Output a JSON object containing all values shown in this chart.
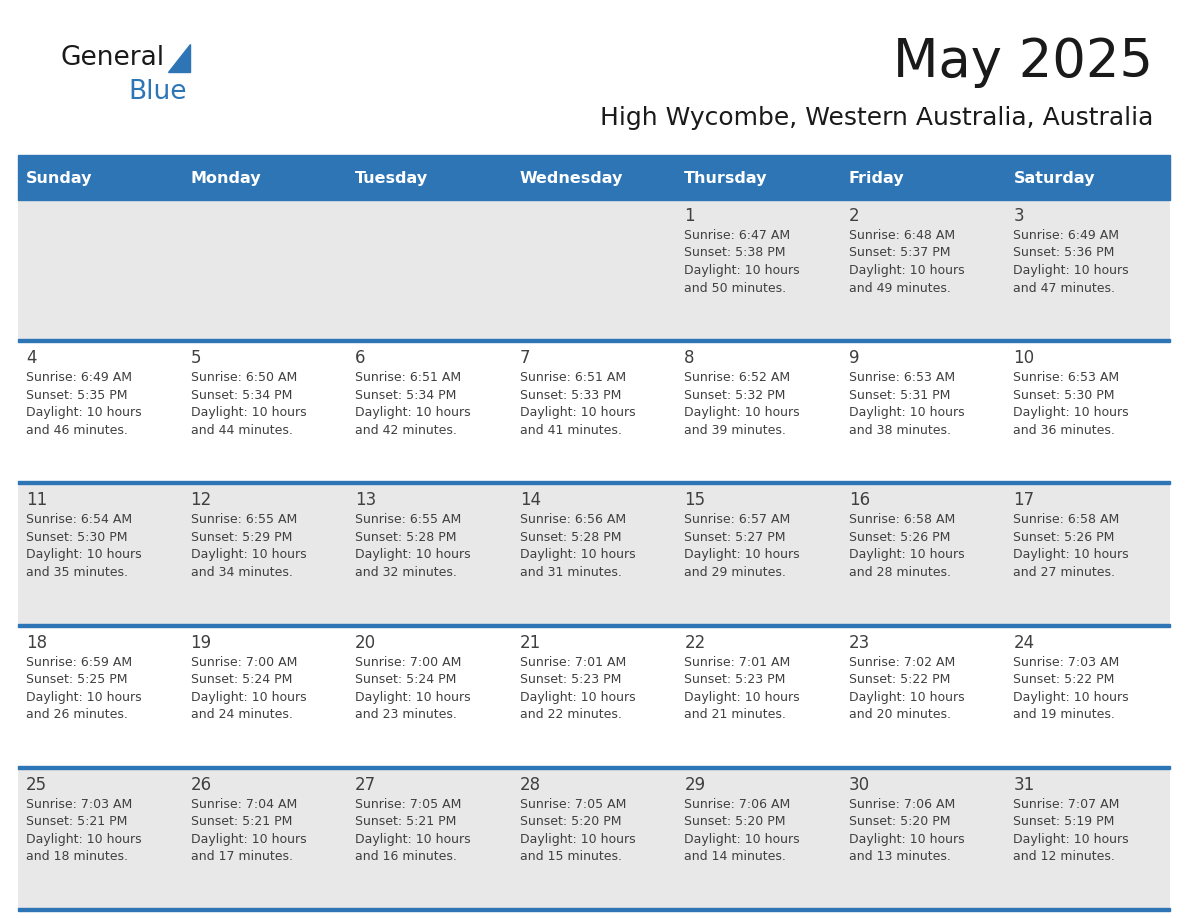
{
  "title": "May 2025",
  "subtitle": "High Wycombe, Western Australia, Australia",
  "days_of_week": [
    "Sunday",
    "Monday",
    "Tuesday",
    "Wednesday",
    "Thursday",
    "Friday",
    "Saturday"
  ],
  "header_bg": "#2E75B6",
  "header_text": "#FFFFFF",
  "cell_bg_even": "#FFFFFF",
  "cell_bg_odd": "#E8E8E8",
  "separator_color": "#2E75B6",
  "text_color": "#404040",
  "title_color": "#1a1a1a",
  "logo_black": "#1a1a1a",
  "logo_blue": "#2E75B6",
  "calendar_data": [
    [
      null,
      null,
      null,
      null,
      {
        "day": "1",
        "sunrise": "6:47 AM",
        "sunset": "5:38 PM",
        "daylight_hrs": "10 hours",
        "daylight_min": "and 50 minutes."
      },
      {
        "day": "2",
        "sunrise": "6:48 AM",
        "sunset": "5:37 PM",
        "daylight_hrs": "10 hours",
        "daylight_min": "and 49 minutes."
      },
      {
        "day": "3",
        "sunrise": "6:49 AM",
        "sunset": "5:36 PM",
        "daylight_hrs": "10 hours",
        "daylight_min": "and 47 minutes."
      }
    ],
    [
      {
        "day": "4",
        "sunrise": "6:49 AM",
        "sunset": "5:35 PM",
        "daylight_hrs": "10 hours",
        "daylight_min": "and 46 minutes."
      },
      {
        "day": "5",
        "sunrise": "6:50 AM",
        "sunset": "5:34 PM",
        "daylight_hrs": "10 hours",
        "daylight_min": "and 44 minutes."
      },
      {
        "day": "6",
        "sunrise": "6:51 AM",
        "sunset": "5:34 PM",
        "daylight_hrs": "10 hours",
        "daylight_min": "and 42 minutes."
      },
      {
        "day": "7",
        "sunrise": "6:51 AM",
        "sunset": "5:33 PM",
        "daylight_hrs": "10 hours",
        "daylight_min": "and 41 minutes."
      },
      {
        "day": "8",
        "sunrise": "6:52 AM",
        "sunset": "5:32 PM",
        "daylight_hrs": "10 hours",
        "daylight_min": "and 39 minutes."
      },
      {
        "day": "9",
        "sunrise": "6:53 AM",
        "sunset": "5:31 PM",
        "daylight_hrs": "10 hours",
        "daylight_min": "and 38 minutes."
      },
      {
        "day": "10",
        "sunrise": "6:53 AM",
        "sunset": "5:30 PM",
        "daylight_hrs": "10 hours",
        "daylight_min": "and 36 minutes."
      }
    ],
    [
      {
        "day": "11",
        "sunrise": "6:54 AM",
        "sunset": "5:30 PM",
        "daylight_hrs": "10 hours",
        "daylight_min": "and 35 minutes."
      },
      {
        "day": "12",
        "sunrise": "6:55 AM",
        "sunset": "5:29 PM",
        "daylight_hrs": "10 hours",
        "daylight_min": "and 34 minutes."
      },
      {
        "day": "13",
        "sunrise": "6:55 AM",
        "sunset": "5:28 PM",
        "daylight_hrs": "10 hours",
        "daylight_min": "and 32 minutes."
      },
      {
        "day": "14",
        "sunrise": "6:56 AM",
        "sunset": "5:28 PM",
        "daylight_hrs": "10 hours",
        "daylight_min": "and 31 minutes."
      },
      {
        "day": "15",
        "sunrise": "6:57 AM",
        "sunset": "5:27 PM",
        "daylight_hrs": "10 hours",
        "daylight_min": "and 29 minutes."
      },
      {
        "day": "16",
        "sunrise": "6:58 AM",
        "sunset": "5:26 PM",
        "daylight_hrs": "10 hours",
        "daylight_min": "and 28 minutes."
      },
      {
        "day": "17",
        "sunrise": "6:58 AM",
        "sunset": "5:26 PM",
        "daylight_hrs": "10 hours",
        "daylight_min": "and 27 minutes."
      }
    ],
    [
      {
        "day": "18",
        "sunrise": "6:59 AM",
        "sunset": "5:25 PM",
        "daylight_hrs": "10 hours",
        "daylight_min": "and 26 minutes."
      },
      {
        "day": "19",
        "sunrise": "7:00 AM",
        "sunset": "5:24 PM",
        "daylight_hrs": "10 hours",
        "daylight_min": "and 24 minutes."
      },
      {
        "day": "20",
        "sunrise": "7:00 AM",
        "sunset": "5:24 PM",
        "daylight_hrs": "10 hours",
        "daylight_min": "and 23 minutes."
      },
      {
        "day": "21",
        "sunrise": "7:01 AM",
        "sunset": "5:23 PM",
        "daylight_hrs": "10 hours",
        "daylight_min": "and 22 minutes."
      },
      {
        "day": "22",
        "sunrise": "7:01 AM",
        "sunset": "5:23 PM",
        "daylight_hrs": "10 hours",
        "daylight_min": "and 21 minutes."
      },
      {
        "day": "23",
        "sunrise": "7:02 AM",
        "sunset": "5:22 PM",
        "daylight_hrs": "10 hours",
        "daylight_min": "and 20 minutes."
      },
      {
        "day": "24",
        "sunrise": "7:03 AM",
        "sunset": "5:22 PM",
        "daylight_hrs": "10 hours",
        "daylight_min": "and 19 minutes."
      }
    ],
    [
      {
        "day": "25",
        "sunrise": "7:03 AM",
        "sunset": "5:21 PM",
        "daylight_hrs": "10 hours",
        "daylight_min": "and 18 minutes."
      },
      {
        "day": "26",
        "sunrise": "7:04 AM",
        "sunset": "5:21 PM",
        "daylight_hrs": "10 hours",
        "daylight_min": "and 17 minutes."
      },
      {
        "day": "27",
        "sunrise": "7:05 AM",
        "sunset": "5:21 PM",
        "daylight_hrs": "10 hours",
        "daylight_min": "and 16 minutes."
      },
      {
        "day": "28",
        "sunrise": "7:05 AM",
        "sunset": "5:20 PM",
        "daylight_hrs": "10 hours",
        "daylight_min": "and 15 minutes."
      },
      {
        "day": "29",
        "sunrise": "7:06 AM",
        "sunset": "5:20 PM",
        "daylight_hrs": "10 hours",
        "daylight_min": "and 14 minutes."
      },
      {
        "day": "30",
        "sunrise": "7:06 AM",
        "sunset": "5:20 PM",
        "daylight_hrs": "10 hours",
        "daylight_min": "and 13 minutes."
      },
      {
        "day": "31",
        "sunrise": "7:07 AM",
        "sunset": "5:19 PM",
        "daylight_hrs": "10 hours",
        "daylight_min": "and 12 minutes."
      }
    ]
  ]
}
